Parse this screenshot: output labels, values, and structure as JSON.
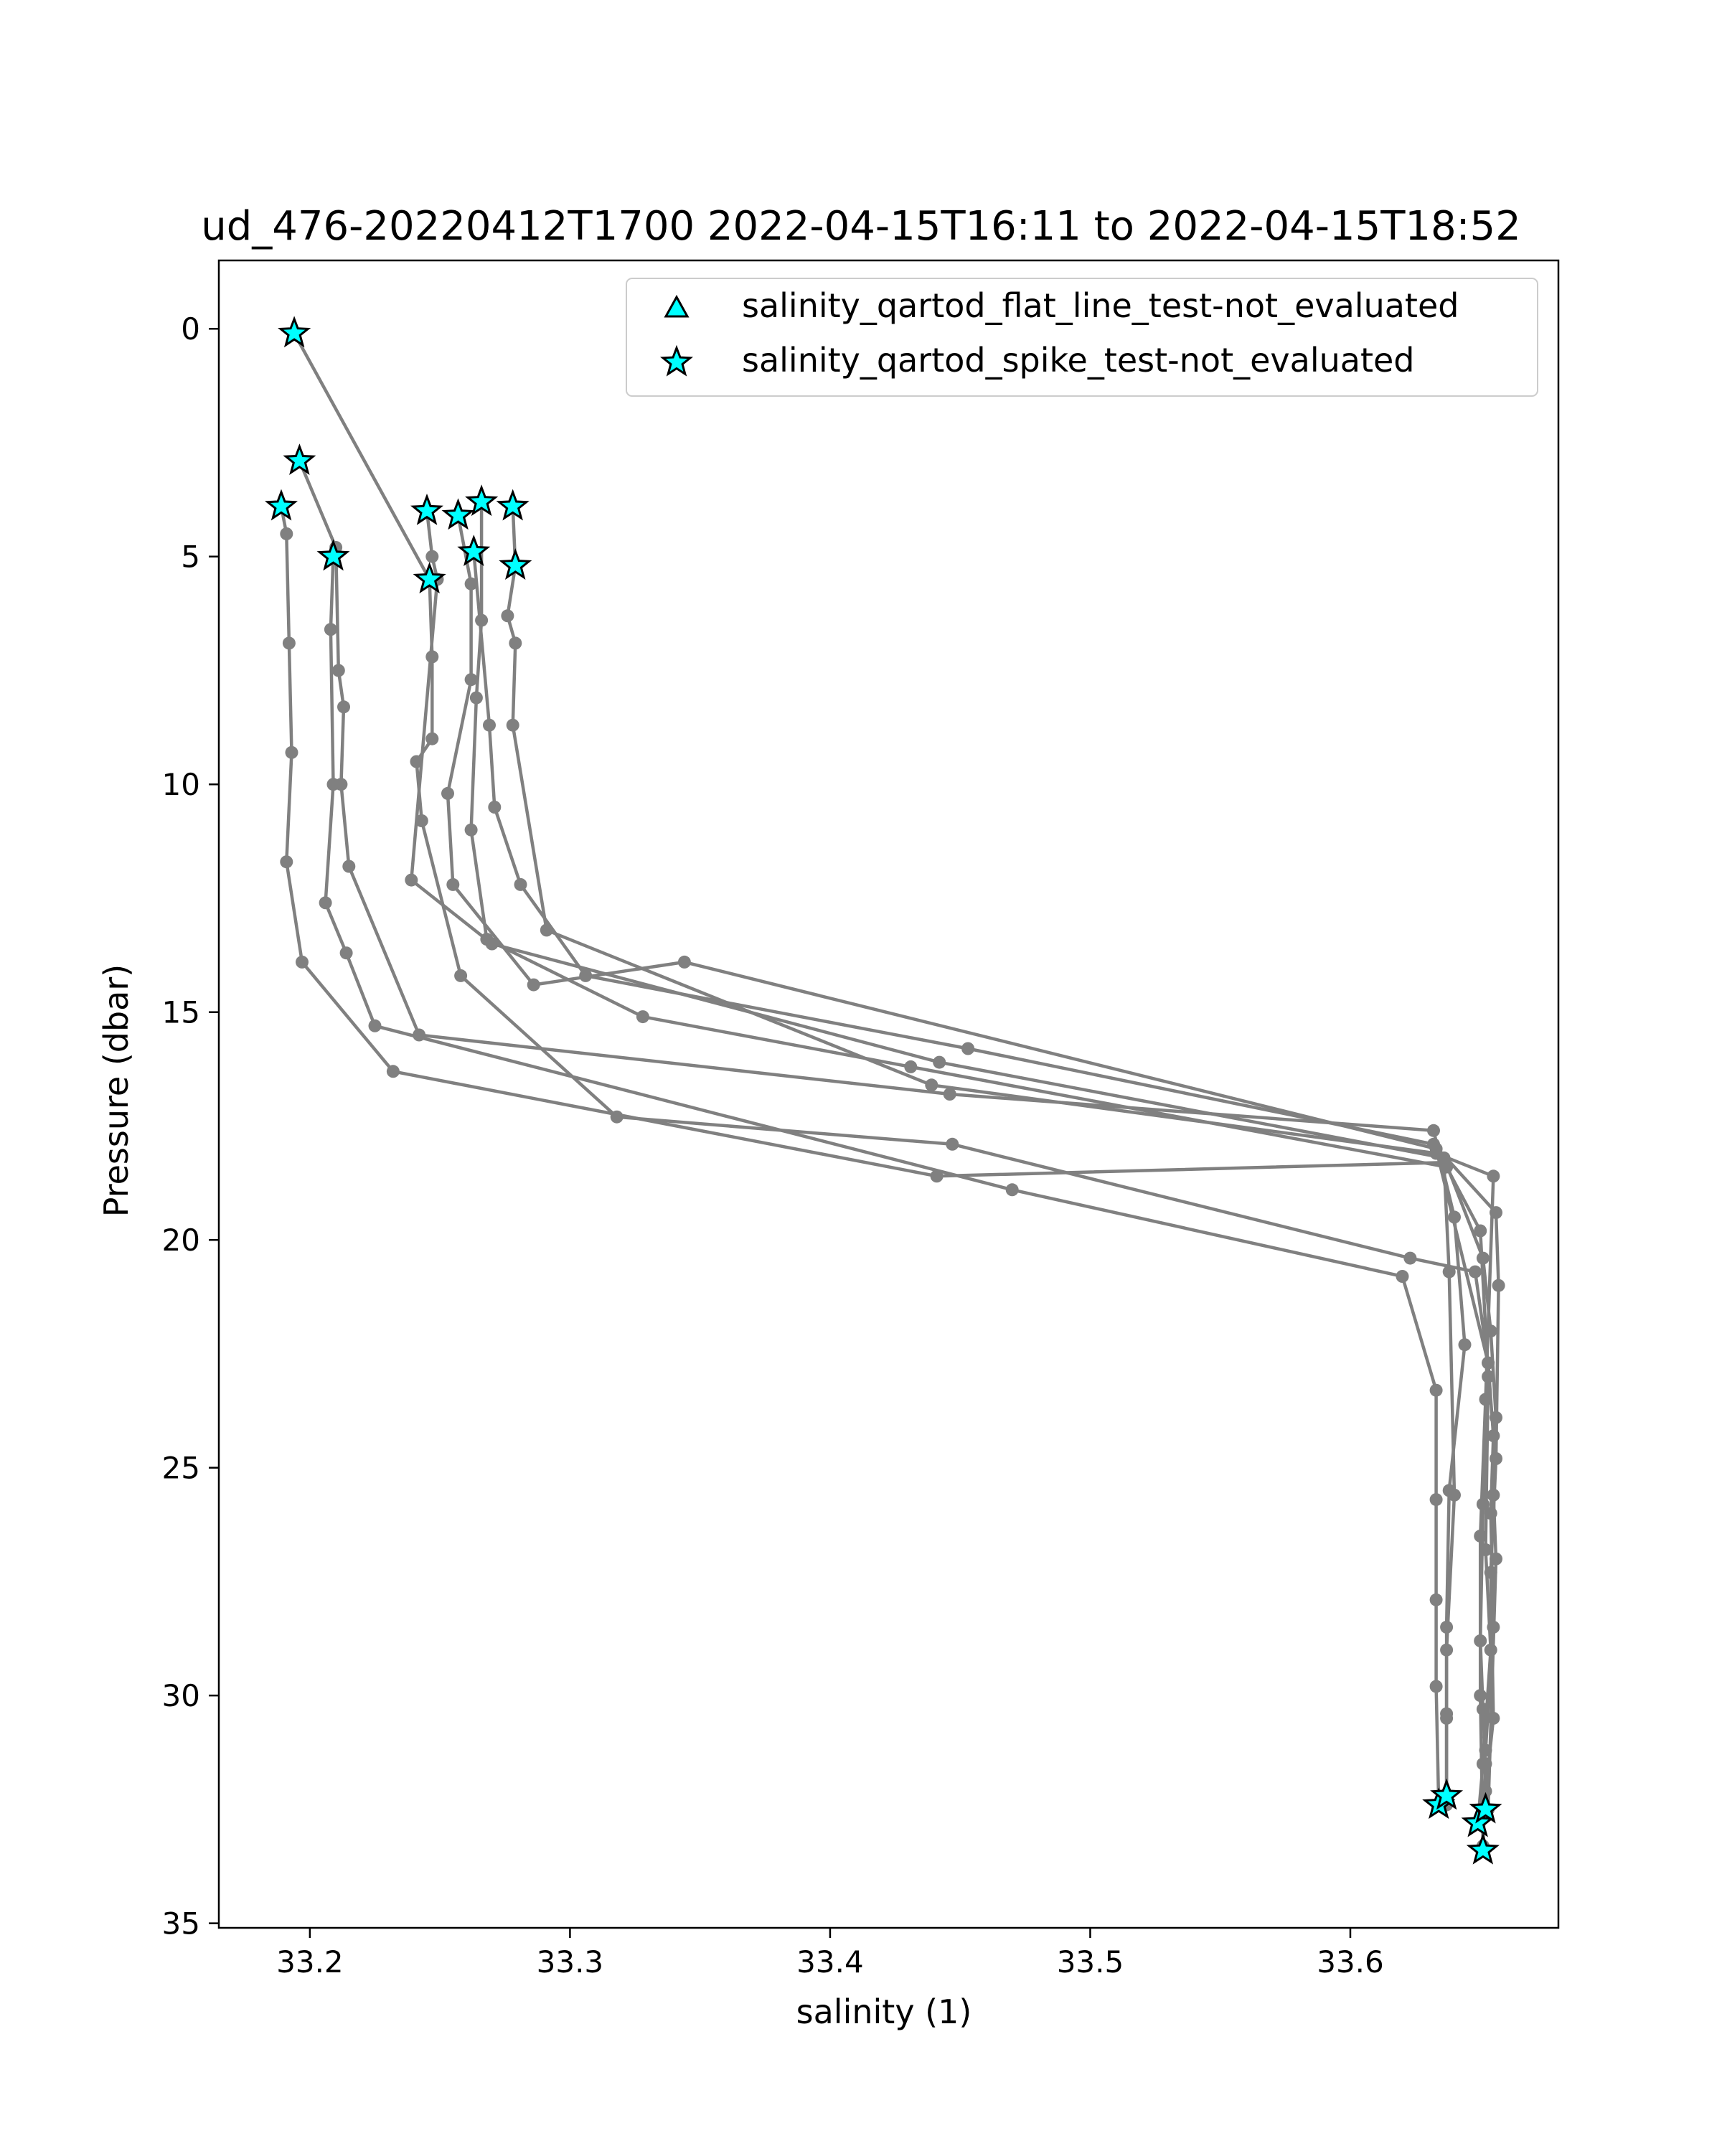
{
  "chart_data": {
    "type": "line",
    "title": "ud_476-20220412T1700 2022-04-15T16:11 to 2022-04-15T18:52",
    "xlabel": "salinity (1)",
    "ylabel": "Pressure (dbar)",
    "xlim": [
      33.165,
      33.68
    ],
    "ylim": [
      35.1,
      -1.5
    ],
    "y_inverted": true,
    "grid": false,
    "legend_position": "top-right",
    "xticks": [
      33.2,
      33.3,
      33.4,
      33.5,
      33.6
    ],
    "xtick_labels": [
      "33.2",
      "33.3",
      "33.4",
      "33.5",
      "33.6"
    ],
    "yticks": [
      0,
      5,
      10,
      15,
      20,
      25,
      30,
      35
    ],
    "ytick_labels": [
      "0",
      "5",
      "10",
      "15",
      "20",
      "25",
      "30",
      "35"
    ],
    "profile_color": "#808080",
    "marker_fill": "#00ffff",
    "legend": [
      {
        "label": "salinity_qartod_flat_line_test-not_evaluated",
        "marker": "triangle"
      },
      {
        "label": "salinity_qartod_spike_test-not_evaluated",
        "marker": "star"
      }
    ],
    "profiles": [
      {
        "x": [
          33.194,
          33.246,
          33.247,
          33.247,
          33.241,
          33.243,
          33.258,
          33.318,
          33.447,
          33.623,
          33.648,
          33.653,
          33.651,
          33.65,
          33.651,
          33.652,
          33.651
        ],
        "y": [
          0.1,
          5.5,
          7.2,
          9.0,
          9.5,
          10.8,
          14.2,
          17.3,
          17.9,
          20.4,
          20.7,
          22.7,
          25.8,
          28.8,
          30.3,
          31.5,
          33.4
        ]
      },
      {
        "x": [
          33.196,
          33.21,
          33.211,
          33.213,
          33.212,
          33.215,
          33.242,
          33.446,
          33.632,
          33.64,
          33.644,
          33.638,
          33.637,
          33.637,
          33.637
        ],
        "y": [
          2.9,
          4.8,
          7.5,
          8.3,
          10.0,
          11.8,
          15.5,
          16.8,
          17.6,
          19.5,
          22.3,
          25.5,
          28.5,
          30.5,
          32.2
        ]
      },
      {
        "x": [
          33.189,
          33.191,
          33.192,
          33.193,
          33.191,
          33.197,
          33.232,
          33.441,
          33.636,
          33.638,
          33.64,
          33.637,
          33.637,
          33.637
        ],
        "y": [
          3.9,
          4.5,
          6.9,
          9.3,
          11.7,
          13.9,
          16.3,
          18.6,
          18.3,
          20.7,
          25.6,
          29.0,
          30.4,
          32.4
        ]
      },
      {
        "x": [
          33.209,
          33.208,
          33.209,
          33.206,
          33.214,
          33.225,
          33.47,
          33.62,
          33.633,
          33.633,
          33.633,
          33.633,
          33.634
        ],
        "y": [
          5.0,
          6.6,
          10.0,
          12.6,
          13.7,
          15.3,
          18.9,
          20.8,
          23.3,
          25.7,
          27.9,
          29.8,
          32.4
        ]
      },
      {
        "x": [
          33.245,
          33.247,
          33.249,
          33.239,
          33.27,
          33.442,
          33.636,
          33.651,
          33.654,
          33.656,
          33.655,
          33.656,
          33.653
        ],
        "y": [
          4.0,
          5.0,
          5.5,
          12.1,
          13.5,
          16.1,
          18.2,
          20.4,
          22.0,
          23.9,
          25.6,
          27.0,
          32.5
        ]
      },
      {
        "x": [
          33.257,
          33.262,
          33.262,
          33.253,
          33.255,
          33.286,
          33.344,
          33.633,
          33.653,
          33.655,
          33.654,
          33.655,
          33.652
        ],
        "y": [
          4.1,
          5.6,
          7.7,
          10.2,
          12.2,
          14.4,
          13.9,
          18.0,
          22.7,
          24.3,
          26.0,
          28.5,
          31.2
        ]
      },
      {
        "x": [
          33.266,
          33.266,
          33.264,
          33.262,
          33.268,
          33.328,
          33.431,
          33.637,
          33.65,
          33.653,
          33.652,
          33.654,
          33.651,
          33.649
        ],
        "y": [
          3.8,
          6.4,
          8.1,
          11.0,
          13.4,
          15.1,
          16.2,
          18.4,
          19.8,
          23.0,
          26.8,
          29.0,
          31.5,
          32.8
        ]
      },
      {
        "x": [
          33.263,
          33.269,
          33.271,
          33.281,
          33.306,
          33.453,
          33.632,
          33.656,
          33.657,
          33.656,
          33.654,
          33.655,
          33.652
        ],
        "y": [
          4.9,
          8.7,
          10.5,
          12.2,
          14.2,
          15.8,
          17.9,
          19.4,
          21.0,
          24.8,
          27.3,
          30.5,
          32.1
        ]
      },
      {
        "x": [
          33.278,
          33.279,
          33.276,
          33.279,
          33.278,
          33.291,
          33.439,
          33.633,
          33.655,
          33.652,
          33.65,
          33.65,
          33.651
        ],
        "y": [
          3.9,
          5.2,
          6.3,
          6.9,
          8.7,
          13.2,
          16.6,
          18.1,
          18.6,
          23.5,
          26.5,
          30.0,
          33.3
        ]
      }
    ],
    "spike_test_points": {
      "x": [
        33.194,
        33.196,
        33.189,
        33.209,
        33.246,
        33.245,
        33.257,
        33.266,
        33.263,
        33.278,
        33.279,
        33.634,
        33.637,
        33.649,
        33.652,
        33.651
      ],
      "y": [
        0.1,
        2.9,
        3.9,
        5.0,
        5.5,
        4.0,
        4.1,
        3.8,
        4.9,
        3.9,
        5.2,
        32.4,
        32.2,
        32.8,
        32.5,
        33.4
      ]
    }
  }
}
